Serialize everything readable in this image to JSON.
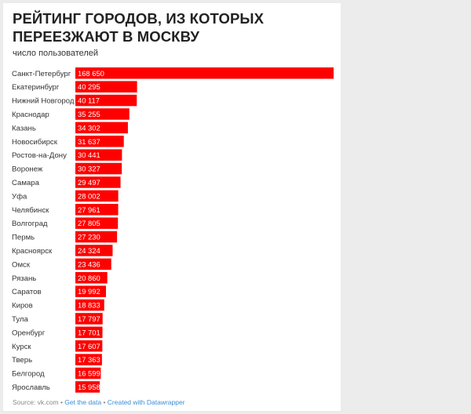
{
  "chart_data": {
    "type": "bar",
    "orientation": "horizontal",
    "title": "РЕЙТИНГ ГОРОДОВ, ИЗ КОТОРЫХ ПЕРЕЕЗЖАЮТ В МОСКВУ",
    "subtitle": "число пользователей",
    "bar_color": "#ff0000",
    "label_color": "#ffffff",
    "categories": [
      "Санкт-Петербург",
      "Екатеринбург",
      "Нижний Новгород",
      "Краснодар",
      "Казань",
      "Новосибирск",
      "Ростов-на-Дону",
      "Воронеж",
      "Самара",
      "Уфа",
      "Челябинск",
      "Волгоград",
      "Пермь",
      "Красноярск",
      "Омск",
      "Рязань",
      "Саратов",
      "Киров",
      "Тула",
      "Оренбург",
      "Курск",
      "Тверь",
      "Белгород",
      "Ярославль"
    ],
    "values": [
      168650,
      40295,
      40117,
      35255,
      34302,
      31637,
      30441,
      30327,
      29497,
      28002,
      27961,
      27805,
      27230,
      24324,
      23436,
      20860,
      19992,
      18833,
      17797,
      17701,
      17607,
      17363,
      16599,
      15958
    ],
    "value_labels": [
      "168 650",
      "40 295",
      "40 117",
      "35 255",
      "34 302",
      "31 637",
      "30 441",
      "30 327",
      "29 497",
      "28 002",
      "27 961",
      "27 805",
      "27 230",
      "24 324",
      "23 436",
      "20 860",
      "19 992",
      "18 833",
      "17 797",
      "17 701",
      "17 607",
      "17 363",
      "16 599",
      "15 958"
    ]
  },
  "footer": {
    "source": "Source: vk.com",
    "separator": " • ",
    "get_data": "Get the data",
    "created_with": "Created with Datawrapper"
  }
}
